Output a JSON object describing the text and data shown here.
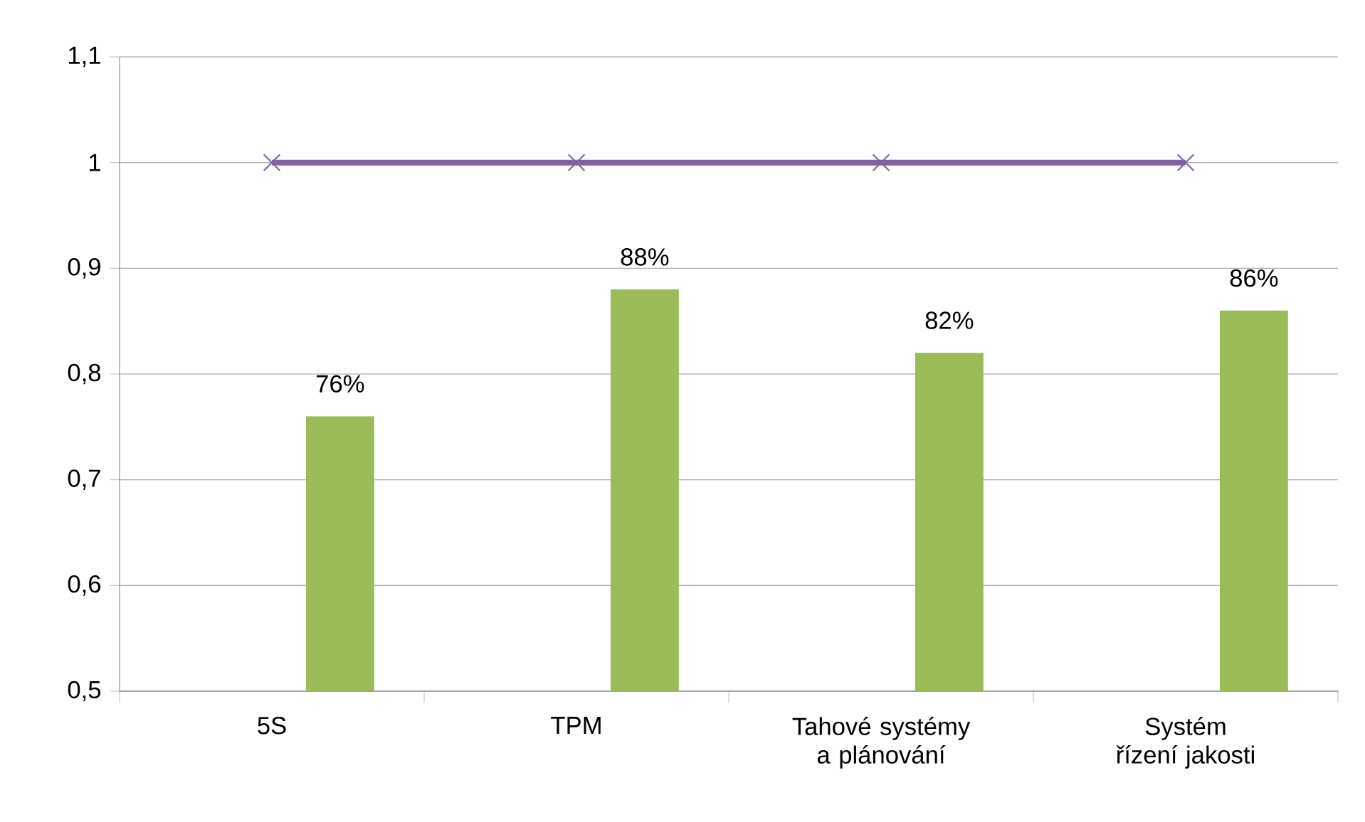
{
  "chart_data": {
    "type": "bar",
    "categories": [
      "5S",
      "TPM",
      "Tahové systémy a plánování",
      "Systém řízení jakosti"
    ],
    "series": [
      {
        "color": "#9bbb59",
        "values": [
          0.76,
          0.88,
          0.82,
          0.86
        ],
        "value_labels": [
          "76%",
          "88%",
          "82%",
          "86%"
        ]
      },
      {
        "type": "line",
        "color": "#8064a2",
        "values": [
          1,
          1,
          1,
          1
        ]
      }
    ],
    "marker": "cross",
    "ylim": [
      0.5,
      1.1
    ],
    "yticks": [
      {
        "value": 0.5,
        "label": "0,5"
      },
      {
        "value": 0.6,
        "label": "0,6"
      },
      {
        "value": 0.7,
        "label": "0,7"
      },
      {
        "value": 0.8,
        "label": "0,8"
      },
      {
        "value": 0.9,
        "label": "0,9"
      },
      {
        "value": 1,
        "label": "1"
      },
      {
        "value": 1.1,
        "label": "1,1"
      }
    ],
    "grid": "y"
  }
}
